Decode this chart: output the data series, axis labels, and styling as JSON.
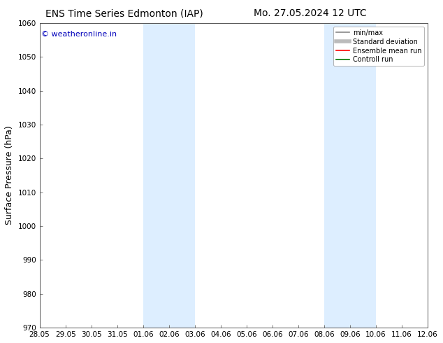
{
  "title_left": "ENS Time Series Edmonton (IAP)",
  "title_right": "Mo. 27.05.2024 12 UTC",
  "ylabel": "Surface Pressure (hPa)",
  "ylim": [
    970,
    1060
  ],
  "yticks": [
    970,
    980,
    990,
    1000,
    1010,
    1020,
    1030,
    1040,
    1050,
    1060
  ],
  "xtick_labels": [
    "28.05",
    "29.05",
    "30.05",
    "31.05",
    "01.06",
    "02.06",
    "03.06",
    "04.06",
    "05.06",
    "06.06",
    "07.06",
    "08.06",
    "09.06",
    "10.06",
    "11.06",
    "12.06"
  ],
  "xtick_positions": [
    0,
    1,
    2,
    3,
    4,
    5,
    6,
    7,
    8,
    9,
    10,
    11,
    12,
    13,
    14,
    15
  ],
  "shaded_regions": [
    {
      "x_start": 4,
      "x_end": 6,
      "color": "#ddeeff"
    },
    {
      "x_start": 11,
      "x_end": 13,
      "color": "#ddeeff"
    }
  ],
  "watermark_text": "© weatheronline.in",
  "watermark_color": "#0000bb",
  "background_color": "#ffffff",
  "legend_items": [
    {
      "label": "min/max",
      "color": "#888888",
      "linestyle": "-",
      "linewidth": 1.2
    },
    {
      "label": "Standard deviation",
      "color": "#bbbbbb",
      "linestyle": "-",
      "linewidth": 4
    },
    {
      "label": "Ensemble mean run",
      "color": "#ff0000",
      "linestyle": "-",
      "linewidth": 1.2
    },
    {
      "label": "Controll run",
      "color": "#007700",
      "linestyle": "-",
      "linewidth": 1.2
    }
  ],
  "title_fontsize": 10,
  "ylabel_fontsize": 9,
  "tick_fontsize": 7.5,
  "watermark_fontsize": 8,
  "legend_fontsize": 7
}
